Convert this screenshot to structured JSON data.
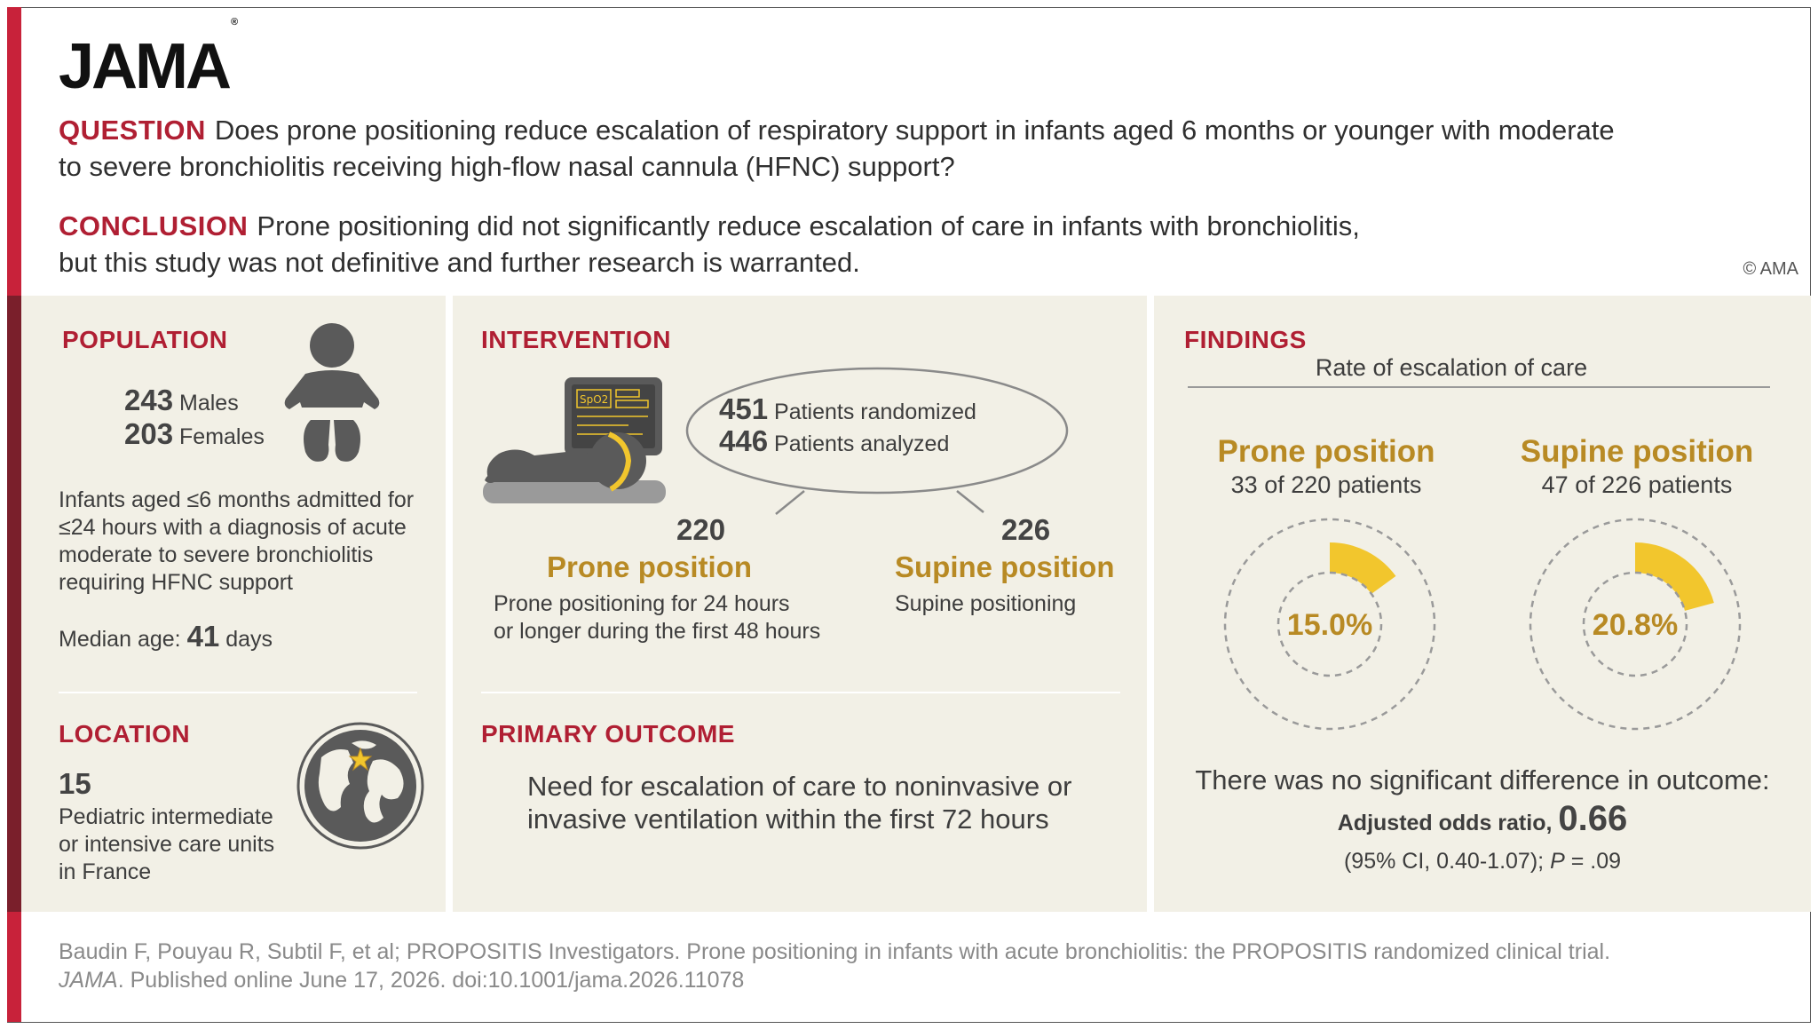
{
  "logo": {
    "text": "JAMA",
    "mark": "®"
  },
  "question": {
    "label": "QUESTION",
    "line1": "Does prone positioning reduce escalation of respiratory support in infants aged 6 months or younger with moderate",
    "line2": "to severe bronchiolitis receiving high-flow nasal cannula (HFNC) support?"
  },
  "conclusion": {
    "label": "CONCLUSION",
    "line1": "Prone positioning did not significantly reduce escalation of care in infants with bronchiolitis,",
    "line2": "but this study was not definitive and further research is warranted."
  },
  "copyright": "© AMA",
  "population": {
    "heading": "POPULATION",
    "males_n": "243",
    "males_label": "Males",
    "females_n": "203",
    "females_label": "Females",
    "desc": [
      "Infants aged ≤6 months admitted for",
      "≤24 hours with a diagnosis of acute",
      "moderate to severe bronchiolitis",
      "requiring HFNC support"
    ],
    "median_label": "Median age:",
    "median_n": "41",
    "median_unit": "days",
    "icon": "infant-icon"
  },
  "location": {
    "heading": "LOCATION",
    "count": "15",
    "desc": [
      "Pediatric intermediate",
      "or intensive care units",
      "in France"
    ],
    "icon": "globe-icon"
  },
  "intervention": {
    "heading": "INTERVENTION",
    "randomized_n": "451",
    "randomized_label": "Patients randomized",
    "analyzed_n": "446",
    "analyzed_label": "Patients analyzed",
    "monitor_label": "SpO2",
    "prone": {
      "n": "220",
      "title": "Prone position",
      "desc": [
        "Prone positioning for 24 hours",
        "or longer during the first 48 hours"
      ]
    },
    "supine": {
      "n": "226",
      "title": "Supine position",
      "desc": [
        "Supine positioning"
      ]
    },
    "icon": "prone-infant-monitor-icon"
  },
  "primary_outcome": {
    "heading": "PRIMARY OUTCOME",
    "desc": [
      "Need for escalation of care to noninvasive or",
      "invasive ventilation within the first 72 hours"
    ]
  },
  "findings": {
    "heading": "FINDINGS",
    "subtitle": "Rate of escalation of care",
    "prone": {
      "title": "Prone position",
      "sub": "33 of 220 patients",
      "pct_label": "15.0%",
      "fraction": 0.15
    },
    "supine": {
      "title": "Supine position",
      "sub": "47 of 226 patients",
      "pct_label": "20.8%",
      "fraction": 0.208
    },
    "summary": "There was no significant difference in outcome:",
    "or_label": "Adjusted odds ratio,",
    "or_value": "0.66",
    "ci_text": "(95% CI, 0.40-1.07);",
    "p_label": "P",
    "p_value": "= .09",
    "accent": "#f2c62d"
  },
  "citation": {
    "line1": "Baudin F, Pouyau R, Subtil F, et al; PROPOSITIS Investigators. Prone positioning in infants with acute bronchiolitis: the PROPOSITIS randomized clinical trial.",
    "journal": "JAMA",
    "line2": ". Published online June 17, 2026. doi:10.1001/jama.2026.11078"
  }
}
